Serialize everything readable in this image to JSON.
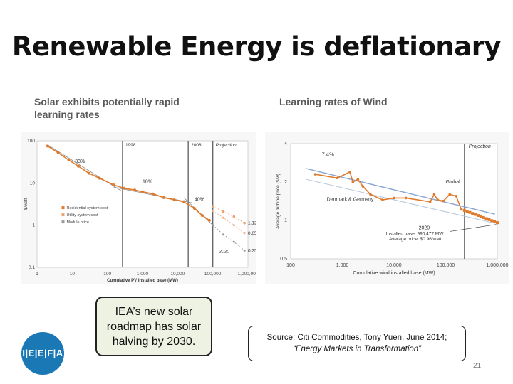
{
  "slide": {
    "title": "Renewable Energy is deflationary",
    "page_number": "21"
  },
  "callout": {
    "lines": [
      "IEA’s new solar",
      "roadmap has solar",
      "halving by 2030."
    ]
  },
  "source": {
    "line1": "Source: Citi Commodities, Tony Yuen, June 2014;",
    "line2": "“Energy Markets in Transformation”"
  },
  "logo": {
    "text": "I E F A",
    "label": "IEEFA"
  },
  "colors": {
    "orange": "#e07a2c",
    "line_blue": "#8aa6d2",
    "grey": "#888888",
    "logo_blue": "#1a78b4"
  },
  "chart_data": [
    {
      "type": "line",
      "subtitle_line1": "Solar exhibits potentially rapid",
      "subtitle_line2": "learning rates",
      "xlabel": "Cumulative PV installed base (MW)",
      "ylabel": "$/watt",
      "x_scale": "log",
      "y_scale": "log",
      "xlim": [
        1,
        1000000
      ],
      "ylim": [
        0.1,
        100
      ],
      "x_ticks": [
        "1",
        "10",
        "100",
        "1,000",
        "10,000",
        "100,000",
        "1,000,000"
      ],
      "y_ticks": [
        "0.1",
        "1",
        "10",
        "100"
      ],
      "vlines": [
        {
          "x": 270,
          "label": "1998"
        },
        {
          "x": 20000,
          "label": "2008"
        },
        {
          "x": 100000,
          "label": "Projection"
        }
      ],
      "annotations": [
        "33%",
        "10%",
        "40%",
        "2020",
        "1.12",
        "0.65",
        "0.25"
      ],
      "legend": [
        "Residential system cost",
        "Utility system cost",
        "Module price"
      ],
      "series": [
        {
          "name": "Module price",
          "points": [
            [
              2,
              75
            ],
            [
              4,
              52
            ],
            [
              8,
              35
            ],
            [
              15,
              25
            ],
            [
              30,
              17
            ],
            [
              60,
              13
            ],
            [
              150,
              9
            ],
            [
              300,
              7.5
            ],
            [
              600,
              6.8
            ],
            [
              1000,
              6.2
            ],
            [
              2000,
              5.5
            ],
            [
              4000,
              4.5
            ],
            [
              8000,
              4
            ],
            [
              15000,
              3.6
            ],
            [
              30000,
              2.5
            ],
            [
              50000,
              1.7
            ],
            [
              80000,
              1.3
            ]
          ]
        },
        {
          "name": "Residential system cost",
          "points": [
            [
              100000,
              2.8
            ],
            [
              200000,
              2.1
            ],
            [
              400000,
              1.6
            ],
            [
              800000,
              1.12
            ]
          ]
        },
        {
          "name": "Utility system cost",
          "points": [
            [
              100000,
              2.2
            ],
            [
              200000,
              1.5
            ],
            [
              400000,
              1.0
            ],
            [
              800000,
              0.65
            ]
          ]
        },
        {
          "name": "Module price projection",
          "points": [
            [
              100000,
              1.0
            ],
            [
              200000,
              0.6
            ],
            [
              400000,
              0.4
            ],
            [
              800000,
              0.25
            ]
          ]
        }
      ]
    },
    {
      "type": "line",
      "subtitle": "Learning rates of Wind",
      "xlabel": "Cumulative wind installed base (MW)",
      "ylabel": "Average turbine price ($/w)",
      "x_scale": "log",
      "y_scale": "log",
      "xlim": [
        100,
        1000000
      ],
      "ylim": [
        0.5,
        4
      ],
      "x_ticks": [
        "100",
        "1,000",
        "10,000",
        "100,000",
        "1,000,000"
      ],
      "y_ticks": [
        "0.5",
        "1",
        "2",
        "4"
      ],
      "vlines": [
        {
          "x": 230000,
          "label": "Projection"
        }
      ],
      "annotations": [
        "7.4%",
        "Global",
        "Denmark & Germany",
        "2020",
        "Installed base: 990,477 MW",
        "Average price: $0.96/watt"
      ],
      "series": [
        {
          "name": "Denmark & Germany",
          "points": [
            [
              300,
              2.3
            ],
            [
              800,
              2.15
            ],
            [
              1400,
              2.4
            ],
            [
              1600,
              2.0
            ],
            [
              2000,
              2.1
            ],
            [
              2500,
              1.85
            ],
            [
              3500,
              1.6
            ],
            [
              6000,
              1.45
            ],
            [
              10000,
              1.5
            ],
            [
              17000,
              1.5
            ],
            [
              50000,
              1.4
            ],
            [
              60000,
              1.6
            ],
            [
              70000,
              1.45
            ],
            [
              90000,
              1.42
            ],
            [
              120000,
              1.6
            ],
            [
              160000,
              1.55
            ],
            [
              200000,
              1.22
            ],
            [
              300000,
              1.15
            ],
            [
              500000,
              1.05
            ],
            [
              1000000,
              0.96
            ]
          ]
        }
      ]
    }
  ]
}
